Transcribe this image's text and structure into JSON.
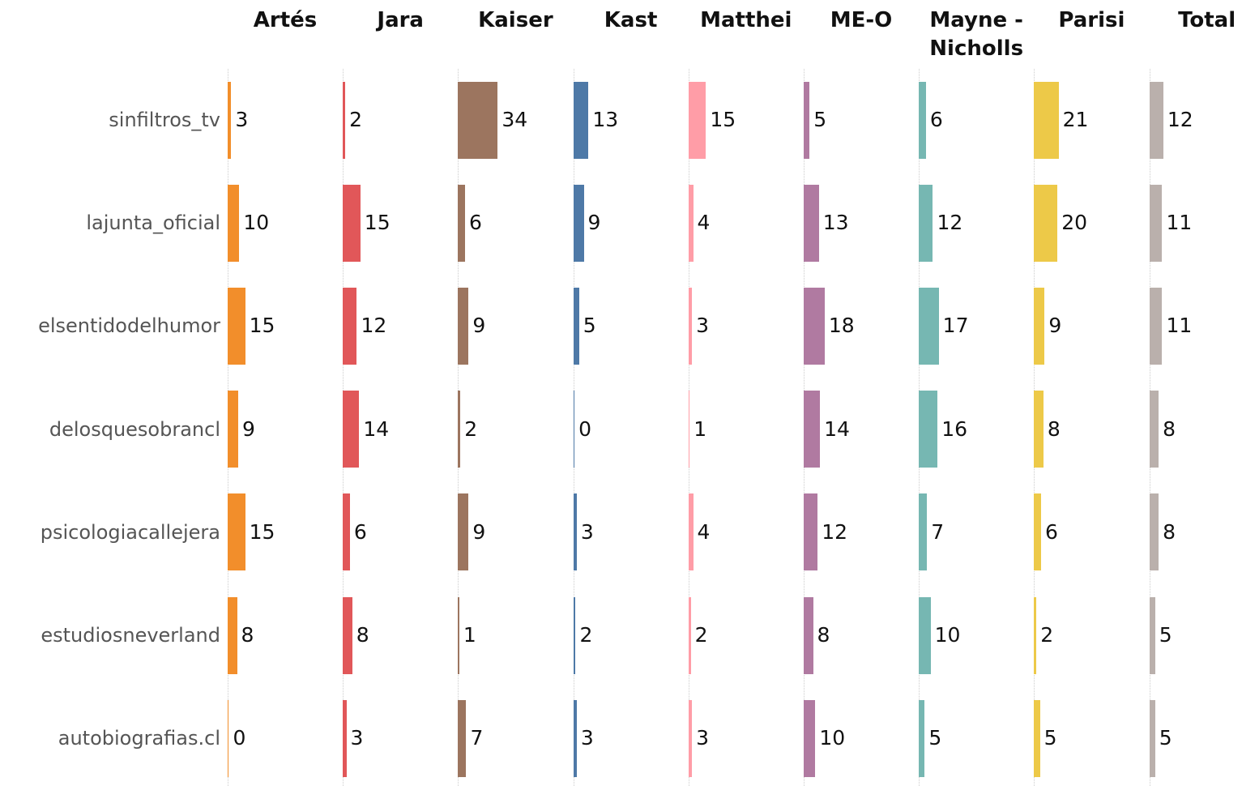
{
  "chart_data": {
    "type": "bar",
    "categories": [
      "sinfiltros_tv",
      "lajunta_oficial",
      "elsentidodelhumor",
      "delosquesobrancl",
      "psicologiacallejera",
      "estudiosneverland",
      "autobiografias.cl"
    ],
    "xlim": [
      0,
      100
    ],
    "series": [
      {
        "name": "Artés",
        "color": "#f28e2b",
        "values": [
          3,
          10,
          15,
          9,
          15,
          8,
          0
        ]
      },
      {
        "name": "Jara",
        "color": "#e15759",
        "values": [
          2,
          15,
          12,
          14,
          6,
          8,
          3
        ]
      },
      {
        "name": "Kaiser",
        "color": "#9c755f",
        "values": [
          34,
          6,
          9,
          2,
          9,
          1,
          7
        ]
      },
      {
        "name": "Kast",
        "color": "#4e79a7",
        "values": [
          13,
          9,
          5,
          0,
          3,
          2,
          3
        ]
      },
      {
        "name": "Matthei",
        "color": "#ff9da7",
        "values": [
          15,
          4,
          3,
          1,
          4,
          2,
          3
        ]
      },
      {
        "name": "ME-O",
        "color": "#b07aa1",
        "values": [
          5,
          13,
          18,
          14,
          12,
          8,
          10
        ]
      },
      {
        "name": "Mayne - Nicholls",
        "color": "#76b7b2",
        "values": [
          6,
          12,
          17,
          16,
          7,
          10,
          5
        ]
      },
      {
        "name": "Parisi",
        "color": "#edc948",
        "values": [
          21,
          20,
          9,
          8,
          6,
          2,
          5
        ]
      },
      {
        "name": "Total",
        "color": "#bab0ac",
        "values": [
          12,
          11,
          11,
          8,
          8,
          5,
          5
        ]
      }
    ]
  }
}
